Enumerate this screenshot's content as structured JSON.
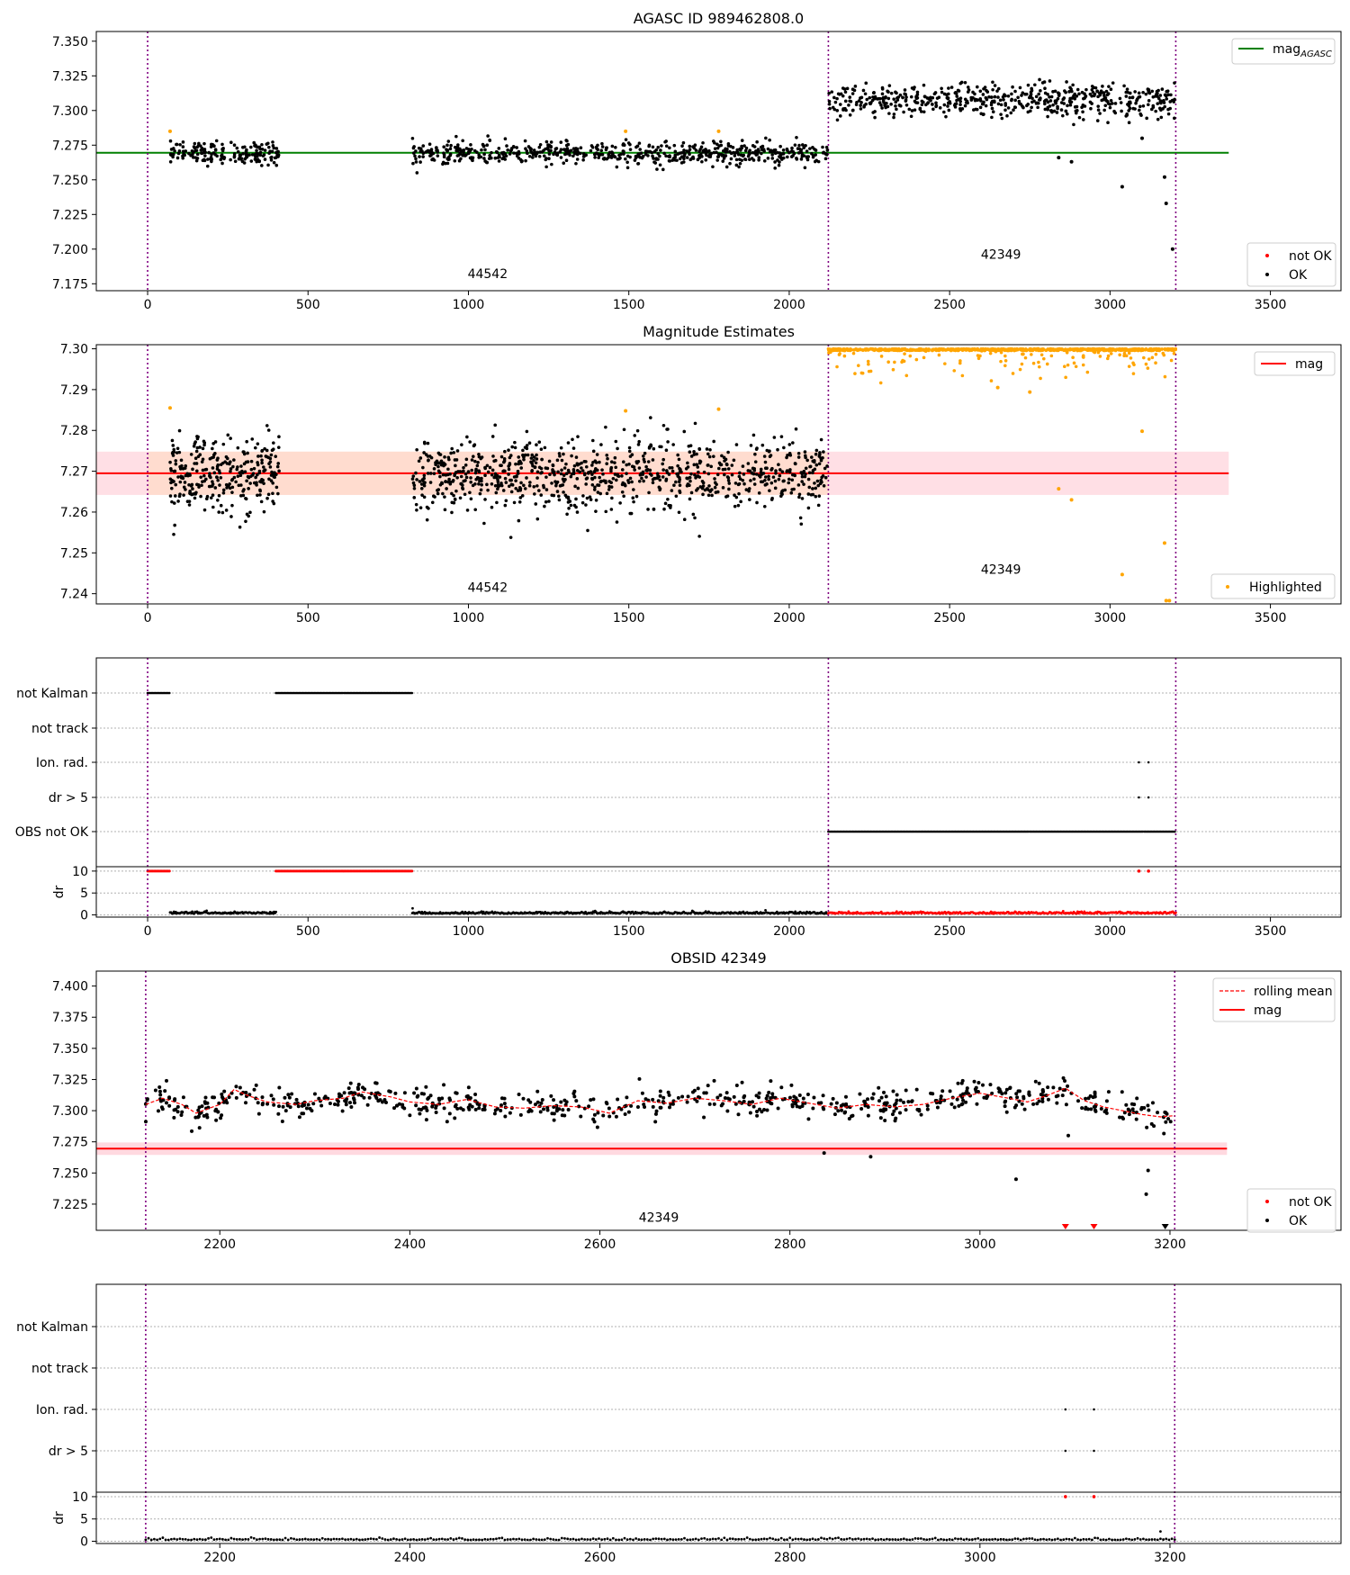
{
  "figure": {
    "background": "#ffffff"
  },
  "colors": {
    "ok": "#000000",
    "not_ok": "#ff0000",
    "highlight": "#ffa500",
    "agasc_line": "#008000",
    "mag_line": "#ff0000",
    "vline": "#800080",
    "band_outer": "#ffc0cb",
    "band_inner": "#ffdab9",
    "grid": "#b0b0b0"
  },
  "chart_data": [
    {
      "id": "p1",
      "type": "scatter",
      "title": "AGASC ID 989462808.0",
      "xlim": [
        -160,
        3720
      ],
      "ylim": [
        7.17,
        7.357
      ],
      "xticks": [
        0,
        500,
        1000,
        1500,
        2000,
        2500,
        3000,
        3500
      ],
      "yticks": [
        7.175,
        7.2,
        7.225,
        7.25,
        7.275,
        7.3,
        7.325,
        7.35
      ],
      "ytick_labels": [
        "7.175",
        "7.200",
        "7.225",
        "7.250",
        "7.275",
        "7.300",
        "7.325",
        "7.350"
      ],
      "vlines": [
        0,
        2122,
        3205
      ],
      "hline": {
        "y": 7.2695,
        "x": [
          -160,
          3370
        ],
        "name": "mag",
        "name_sub": "AGASC"
      },
      "segments": [
        {
          "obsid": "44542",
          "x": [
            70,
            410
          ],
          "level": 7.2695,
          "spread": 0.004,
          "color": "ok",
          "count": 175
        },
        {
          "obsid": "44542",
          "x": [
            825,
            2120
          ],
          "level": 7.269,
          "spread": 0.004,
          "color": "ok",
          "count": 620
        },
        {
          "obsid": "42349",
          "x": [
            2122,
            3205
          ],
          "level": 7.307,
          "spread": 0.006,
          "color": "ok",
          "count": 560
        }
      ],
      "points": [
        {
          "x": 2840,
          "y": 7.266
        },
        {
          "x": 2880,
          "y": 7.263
        },
        {
          "x": 3038,
          "y": 7.245
        },
        {
          "x": 3100,
          "y": 7.28
        },
        {
          "x": 3170,
          "y": 7.252
        },
        {
          "x": 3175,
          "y": 7.233
        },
        {
          "x": 3195,
          "y": 7.2
        }
      ],
      "highlight_points": [
        {
          "x": 70,
          "y": 7.285
        },
        {
          "x": 1490,
          "y": 7.285
        },
        {
          "x": 1780,
          "y": 7.285
        }
      ],
      "annotations": [
        {
          "text": "44542",
          "x": 1060,
          "y": 7.179
        },
        {
          "text": "42349",
          "x": 2660,
          "y": 7.193
        }
      ],
      "legend_upper": {
        "position": "top-right",
        "entries": [
          "mag"
        ]
      },
      "legend_lower": {
        "position": "bottom-right",
        "entries": [
          "not OK",
          "OK"
        ]
      }
    },
    {
      "id": "p2",
      "type": "scatter",
      "title": "Magnitude Estimates",
      "xlim": [
        -160,
        3720
      ],
      "ylim": [
        7.2375,
        7.301
      ],
      "xticks": [
        0,
        500,
        1000,
        1500,
        2000,
        2500,
        3000,
        3500
      ],
      "yticks": [
        7.24,
        7.25,
        7.26,
        7.27,
        7.28,
        7.29,
        7.3
      ],
      "ytick_labels": [
        "7.24",
        "7.25",
        "7.26",
        "7.27",
        "7.28",
        "7.29",
        "7.30"
      ],
      "vlines": [
        0,
        2122,
        3205
      ],
      "hline": {
        "y": 7.2695,
        "x": [
          -160,
          3370
        ],
        "name": "mag"
      },
      "bands": [
        {
          "y": [
            7.2642,
            7.2748
          ],
          "x": [
            -160,
            3370
          ],
          "color": "band_outer"
        },
        {
          "y": [
            7.2642,
            7.2748
          ],
          "x": [
            0,
            2122
          ],
          "color": "band_inner"
        }
      ],
      "segments": [
        {
          "x": [
            70,
            410
          ],
          "level": 7.2695,
          "spread": 0.0045,
          "color": "ok",
          "count": 300
        },
        {
          "x": [
            825,
            2120
          ],
          "level": 7.269,
          "spread": 0.0045,
          "color": "ok",
          "count": 900
        }
      ],
      "points_highlight": [
        {
          "x": 70,
          "y": 7.2855
        },
        {
          "x": 1490,
          "y": 7.2848
        },
        {
          "x": 1780,
          "y": 7.2852
        },
        {
          "x": 2840,
          "y": 7.2657
        },
        {
          "x": 2880,
          "y": 7.263
        },
        {
          "x": 3038,
          "y": 7.2447
        },
        {
          "x": 3100,
          "y": 7.2798
        },
        {
          "x": 3170,
          "y": 7.2524
        },
        {
          "x": 3175,
          "y": 7.2383
        },
        {
          "x": 3185,
          "y": 7.2383
        },
        {
          "x": 2650,
          "y": 7.2905
        },
        {
          "x": 2750,
          "y": 7.2894
        }
      ],
      "capped_top": {
        "x": [
          2122,
          3205
        ],
        "y": 7.3,
        "dip_count": 110
      },
      "annotations": [
        {
          "text": "44542",
          "x": 1060,
          "y": 7.2405
        },
        {
          "text": "42349",
          "x": 2660,
          "y": 7.2449
        }
      ],
      "legend_upper": {
        "position": "top-right",
        "entries": [
          "mag"
        ]
      },
      "legend_lower": {
        "position": "bottom-right",
        "entries": [
          "Highlighted"
        ]
      }
    },
    {
      "id": "p3",
      "type": "scatter",
      "xlim": [
        -160,
        3720
      ],
      "xticks": [
        0,
        500,
        1000,
        1500,
        2000,
        2500,
        3000,
        3500
      ],
      "vlines": [
        0,
        2122,
        3205
      ],
      "flag_rows": [
        "not Kalman",
        "not track",
        "Ion. rad.",
        "dr > 5",
        "OBS not OK"
      ],
      "flag_segments": [
        {
          "row": "not Kalman",
          "x": [
            0,
            70
          ]
        },
        {
          "row": "not Kalman",
          "x": [
            400,
            825
          ]
        },
        {
          "row": "OBS not OK",
          "x": [
            2122,
            3205
          ]
        }
      ],
      "flag_points": [
        {
          "row": "Ion. rad.",
          "x": 3090
        },
        {
          "row": "Ion. rad.",
          "x": 3120
        },
        {
          "row": "dr > 5",
          "x": 3090
        },
        {
          "row": "dr > 5",
          "x": 3120
        }
      ],
      "dr": {
        "ylabel": "dr",
        "ylim": [
          -0.5,
          11
        ],
        "yticks": [
          0,
          5,
          10
        ],
        "capped_red": [
          {
            "x": [
              0,
              70
            ]
          },
          {
            "x": [
              400,
              825
            ]
          }
        ],
        "capped_red_points": [
          3090,
          3120
        ],
        "baseline_black": [
          {
            "x": [
              70,
              400
            ]
          },
          {
            "x": [
              825,
              2122
            ]
          }
        ],
        "baseline_red": [
          {
            "x": [
              2122,
              3205
            ]
          }
        ],
        "extra_points": [
          {
            "x": 826,
            "y": 1.5
          }
        ]
      }
    },
    {
      "id": "p4",
      "type": "line",
      "title": "OBSID 42349",
      "xlim": [
        2070,
        3380
      ],
      "ylim": [
        7.204,
        7.412
      ],
      "xticks": [
        2200,
        2400,
        2600,
        2800,
        3000,
        3200
      ],
      "yticks": [
        7.225,
        7.25,
        7.275,
        7.3,
        7.325,
        7.35,
        7.375,
        7.4
      ],
      "ytick_labels": [
        "7.225",
        "7.250",
        "7.275",
        "7.300",
        "7.325",
        "7.350",
        "7.375",
        "7.400"
      ],
      "vlines": [
        2122,
        3205
      ],
      "hline": {
        "y": 7.2695,
        "x": [
          2070,
          3260
        ],
        "name": "mag"
      },
      "bands": [
        {
          "y": [
            7.2645,
            7.2745
          ],
          "x": [
            2070,
            3260
          ],
          "color": "band_outer"
        }
      ],
      "series": [
        {
          "name": "rolling mean",
          "style": "dashed",
          "color": "not_ok",
          "points": [
            [
              2122,
              7.305
            ],
            [
              2140,
              7.31
            ],
            [
              2160,
              7.305
            ],
            [
              2175,
              7.298
            ],
            [
              2200,
              7.305
            ],
            [
              2215,
              7.317
            ],
            [
              2230,
              7.312
            ],
            [
              2250,
              7.307
            ],
            [
              2280,
              7.305
            ],
            [
              2300,
              7.308
            ],
            [
              2330,
              7.31
            ],
            [
              2350,
              7.315
            ],
            [
              2380,
              7.311
            ],
            [
              2400,
              7.307
            ],
            [
              2430,
              7.305
            ],
            [
              2460,
              7.309
            ],
            [
              2490,
              7.303
            ],
            [
              2520,
              7.302
            ],
            [
              2550,
              7.304
            ],
            [
              2580,
              7.303
            ],
            [
              2610,
              7.298
            ],
            [
              2640,
              7.308
            ],
            [
              2670,
              7.306
            ],
            [
              2700,
              7.31
            ],
            [
              2730,
              7.308
            ],
            [
              2760,
              7.305
            ],
            [
              2790,
              7.31
            ],
            [
              2820,
              7.306
            ],
            [
              2850,
              7.302
            ],
            [
              2880,
              7.305
            ],
            [
              2910,
              7.303
            ],
            [
              2940,
              7.305
            ],
            [
              2970,
              7.31
            ],
            [
              3000,
              7.314
            ],
            [
              3030,
              7.31
            ],
            [
              3050,
              7.307
            ],
            [
              3070,
              7.312
            ],
            [
              3090,
              7.318
            ],
            [
              3110,
              7.308
            ],
            [
              3130,
              7.303
            ],
            [
              3150,
              7.3
            ],
            [
              3170,
              7.297
            ],
            [
              3190,
              7.295
            ],
            [
              3205,
              7.296
            ]
          ]
        }
      ],
      "scatter": {
        "x": [
          2122,
          3205
        ],
        "spread": 0.0055,
        "count": 700
      },
      "outliers_ok": [
        {
          "x": 2836,
          "y": 7.266
        },
        {
          "x": 2885,
          "y": 7.263
        },
        {
          "x": 3038,
          "y": 7.245
        },
        {
          "x": 3093,
          "y": 7.28
        },
        {
          "x": 3177,
          "y": 7.252
        },
        {
          "x": 3175,
          "y": 7.233
        }
      ],
      "triangles": [
        {
          "x": 3090,
          "color": "not_ok"
        },
        {
          "x": 3120,
          "color": "not_ok"
        },
        {
          "x": 3195,
          "color": "ok"
        }
      ],
      "annotations": [
        {
          "text": "42349",
          "x": 2662,
          "y": 7.211
        }
      ],
      "legend_upper": {
        "position": "top-right",
        "entries": [
          "rolling mean",
          "mag"
        ]
      },
      "legend_lower": {
        "position": "bottom-right",
        "entries": [
          "not OK",
          "OK"
        ]
      }
    },
    {
      "id": "p5",
      "type": "scatter",
      "xlim": [
        2070,
        3380
      ],
      "xticks": [
        2200,
        2400,
        2600,
        2800,
        3000,
        3200
      ],
      "vlines": [
        2122,
        3205
      ],
      "flag_rows": [
        "not Kalman",
        "not track",
        "Ion. rad.",
        "dr > 5"
      ],
      "flag_points": [
        {
          "row": "Ion. rad.",
          "x": 3090
        },
        {
          "row": "Ion. rad.",
          "x": 3120
        },
        {
          "row": "dr > 5",
          "x": 3090
        },
        {
          "row": "dr > 5",
          "x": 3120
        }
      ],
      "dr": {
        "ylabel": "dr",
        "ylim": [
          -0.5,
          11
        ],
        "yticks": [
          0,
          5,
          10
        ],
        "capped_red_points": [
          3090,
          3120
        ],
        "baseline_black": [
          {
            "x": [
              2122,
              3205
            ]
          }
        ],
        "extra_points": [
          {
            "x": 3190,
            "y": 2.2
          }
        ]
      }
    }
  ]
}
